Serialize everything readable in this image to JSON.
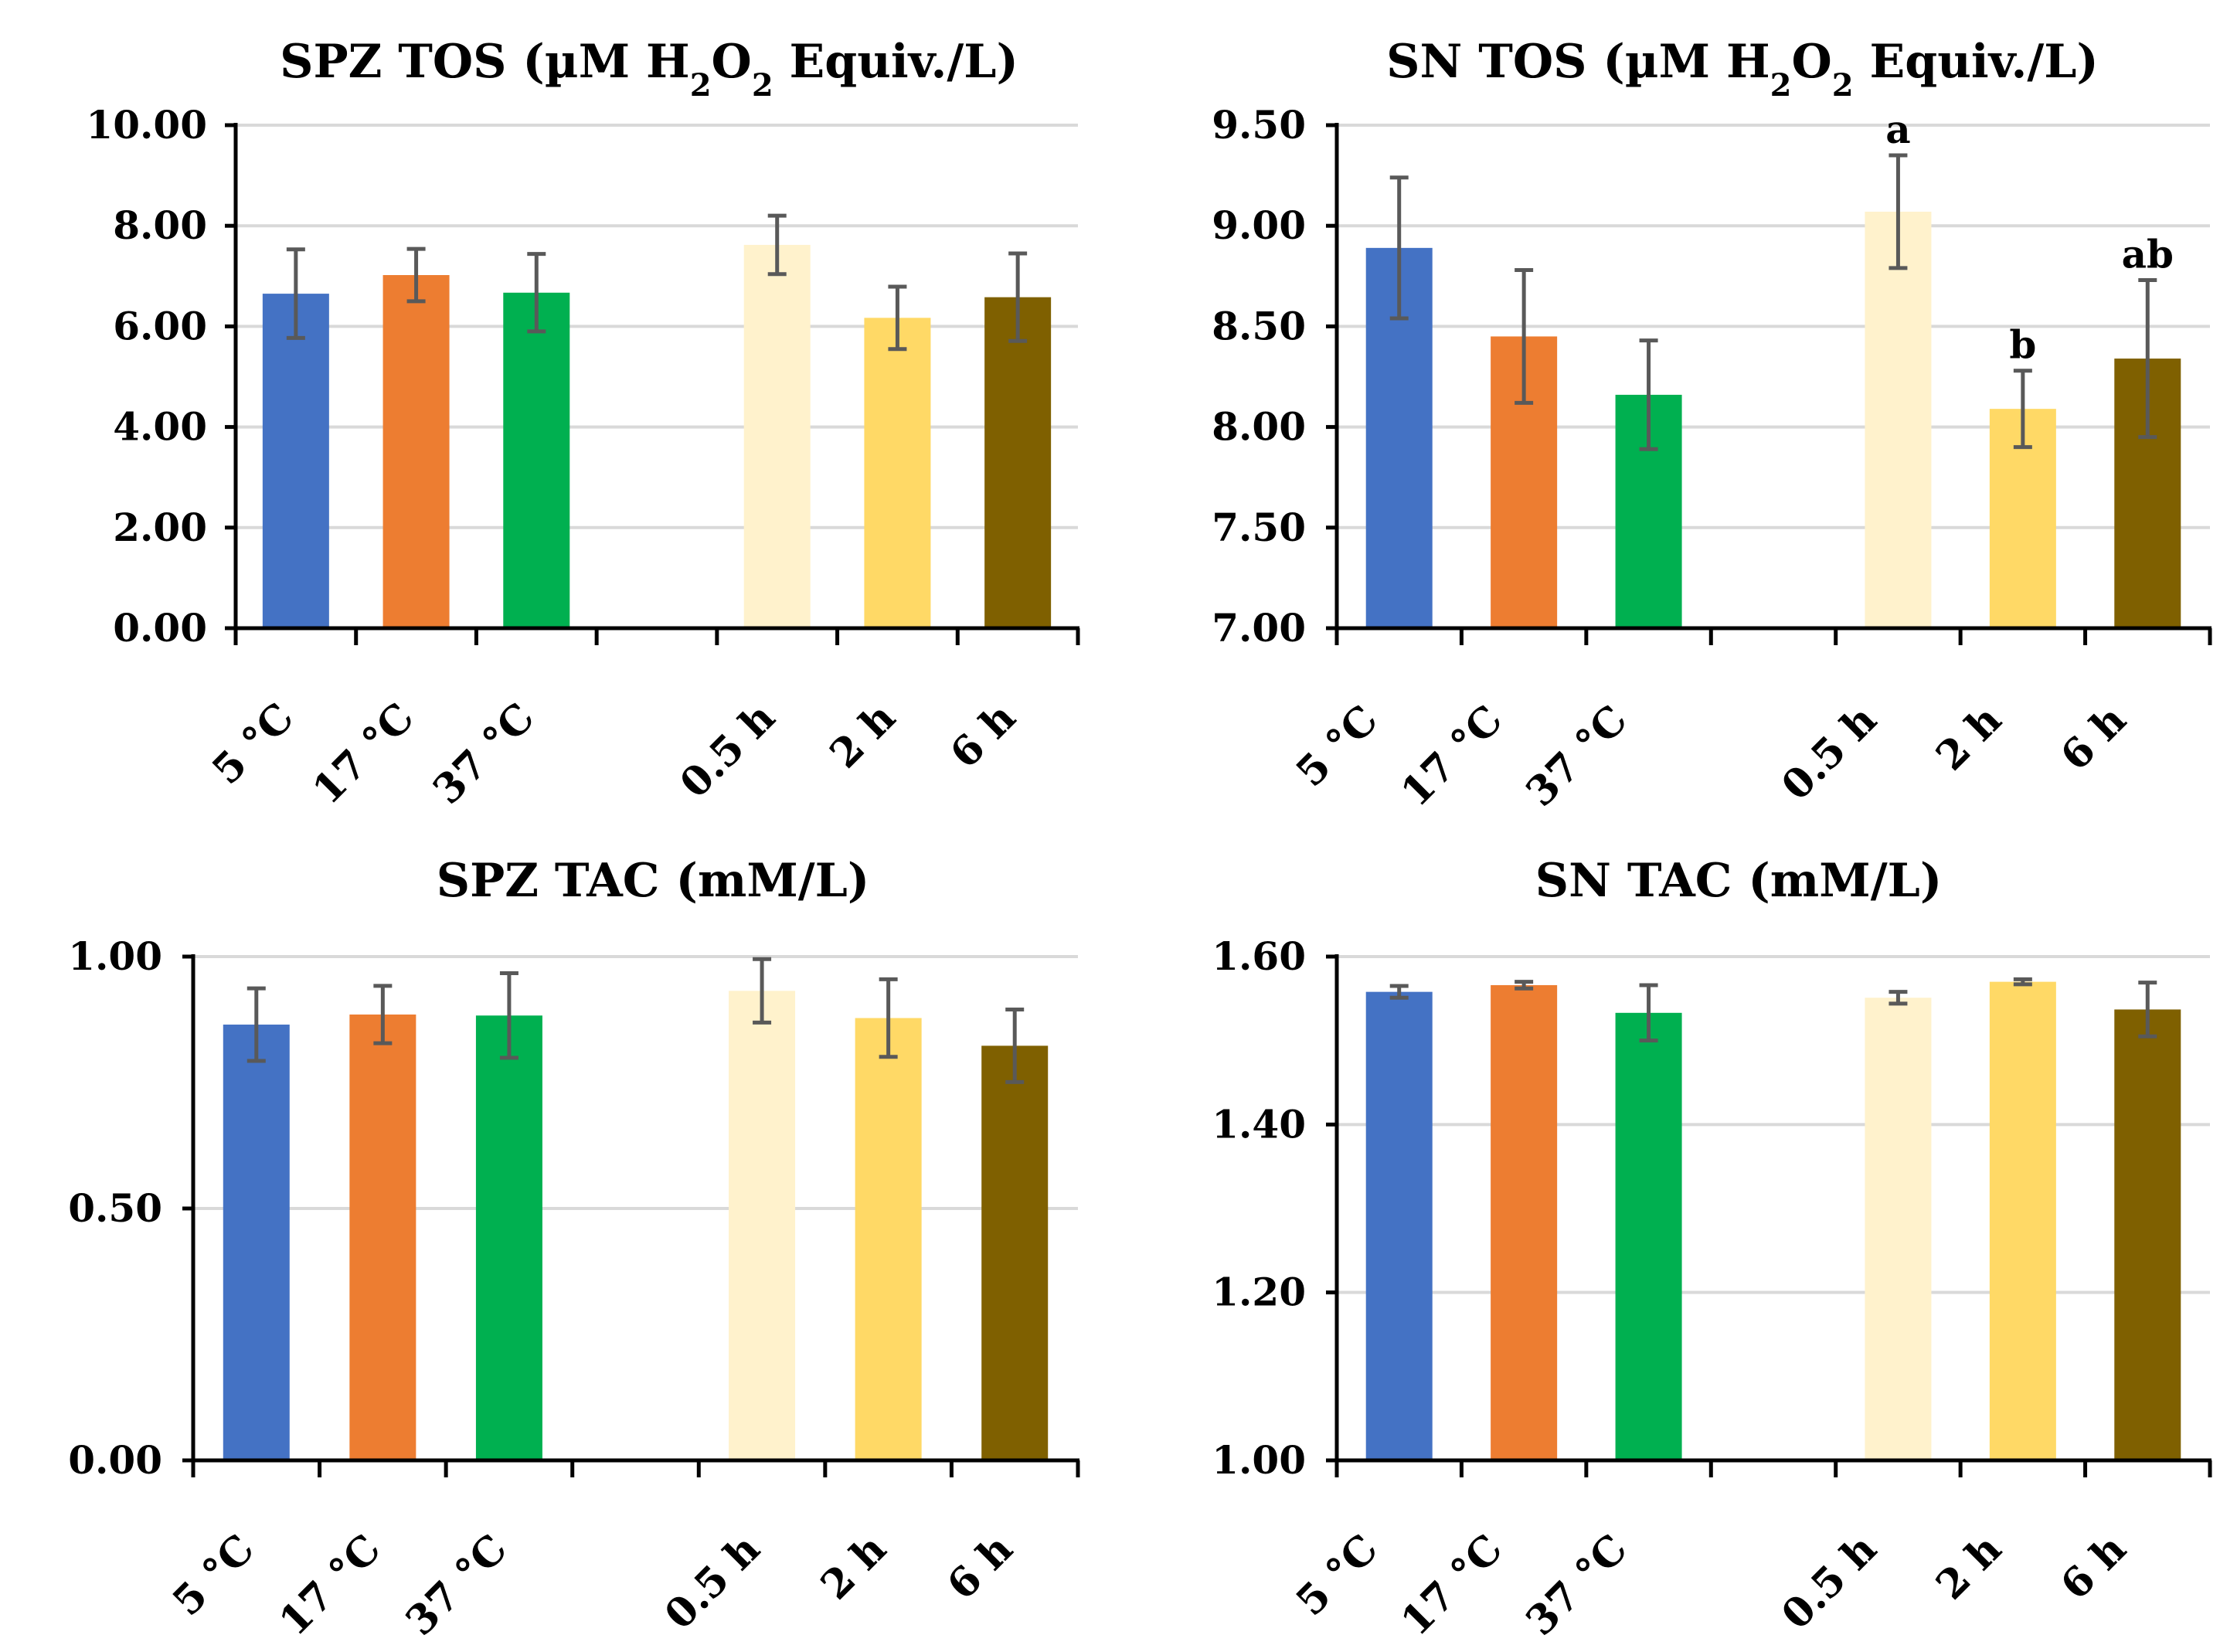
{
  "chart_data": [
    {
      "type": "bar",
      "title": "SPZ TOS (µM H2O2 Equiv./L)",
      "title_parts": {
        "pre": "SPZ TOS (µM H",
        "sub1": "2",
        "mid": "O",
        "sub2": "2",
        "post": " Equiv./L)"
      },
      "categories": [
        "5 °C",
        "17 °C",
        "37 °C",
        "",
        "0.5 h",
        "2 h",
        "6 h"
      ],
      "values": [
        6.65,
        7.02,
        6.67,
        null,
        7.62,
        6.17,
        6.58
      ],
      "errors": [
        0.88,
        0.52,
        0.77,
        null,
        0.58,
        0.62,
        0.87
      ],
      "colors": [
        "#4472C4",
        "#ED7D31",
        "#00B050",
        null,
        "#FFF2CC",
        "#FFD966",
        "#7F6000"
      ],
      "sig_labels": [
        "",
        "",
        "",
        "",
        "",
        "",
        ""
      ],
      "ylim": [
        0,
        10
      ],
      "yticks": [
        0,
        2,
        4,
        6,
        8,
        10
      ],
      "ytick_labels": [
        "0.00",
        "2.00",
        "4.00",
        "6.00",
        "8.00",
        "10.00"
      ],
      "xlabel": "",
      "ylabel": ""
    },
    {
      "type": "bar",
      "title": "SN TOS (µM H2O2 Equiv./L)",
      "title_parts": {
        "pre": "SN TOS (µM H",
        "sub1": "2",
        "mid": "O",
        "sub2": "2",
        "post": " Equiv./L)"
      },
      "categories": [
        "5 °C",
        "17 °C",
        "37 °C",
        "",
        "0.5 h",
        "2 h",
        "6 h"
      ],
      "values": [
        8.89,
        8.45,
        8.16,
        null,
        9.07,
        8.09,
        8.34
      ],
      "errors": [
        0.35,
        0.33,
        0.27,
        null,
        0.28,
        0.19,
        0.39
      ],
      "colors": [
        "#4472C4",
        "#ED7D31",
        "#00B050",
        null,
        "#FFF2CC",
        "#FFD966",
        "#7F6000"
      ],
      "sig_labels": [
        "",
        "",
        "",
        "",
        "a",
        "b",
        "ab"
      ],
      "ylim": [
        7,
        9.5
      ],
      "yticks": [
        7,
        7.5,
        8,
        8.5,
        9,
        9.5
      ],
      "ytick_labels": [
        "7.00",
        "7.50",
        "8.00",
        "8.50",
        "9.00",
        "9.50"
      ],
      "xlabel": "",
      "ylabel": ""
    },
    {
      "type": "bar",
      "title": "SPZ TAC (mM/L)",
      "categories": [
        "5 °C",
        "17 °C",
        "37 °C",
        "",
        "0.5 h",
        "2 h",
        "6 h"
      ],
      "values": [
        0.865,
        0.885,
        0.883,
        null,
        0.932,
        0.878,
        0.823
      ],
      "errors": [
        0.072,
        0.057,
        0.084,
        null,
        0.063,
        0.077,
        0.072
      ],
      "colors": [
        "#4472C4",
        "#ED7D31",
        "#00B050",
        null,
        "#FFF2CC",
        "#FFD966",
        "#7F6000"
      ],
      "sig_labels": [
        "",
        "",
        "",
        "",
        "",
        "",
        ""
      ],
      "ylim": [
        0,
        1
      ],
      "yticks": [
        0,
        0.5,
        1
      ],
      "ytick_labels": [
        "0.00",
        "0.50",
        "1.00"
      ],
      "xlabel": "",
      "ylabel": ""
    },
    {
      "type": "bar",
      "title": "SN TAC (mM/L)",
      "categories": [
        "5 °C",
        "17 °C",
        "37 °C",
        "",
        "0.5 h",
        "2 h",
        "6 h"
      ],
      "values": [
        1.558,
        1.566,
        1.533,
        null,
        1.551,
        1.57,
        1.537
      ],
      "errors": [
        0.007,
        0.004,
        0.033,
        null,
        0.007,
        0.003,
        0.032
      ],
      "colors": [
        "#4472C4",
        "#ED7D31",
        "#00B050",
        null,
        "#FFF2CC",
        "#FFD966",
        "#7F6000"
      ],
      "sig_labels": [
        "",
        "",
        "",
        "",
        "",
        "",
        ""
      ],
      "ylim": [
        1,
        1.6
      ],
      "yticks": [
        1,
        1.2,
        1.4,
        1.6
      ],
      "ytick_labels": [
        "1.00",
        "1.20",
        "1.40",
        "1.60"
      ],
      "xlabel": "",
      "ylabel": ""
    }
  ]
}
